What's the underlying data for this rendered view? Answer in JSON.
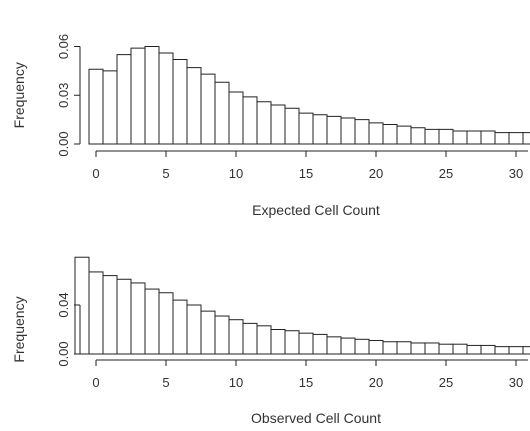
{
  "chart_data": [
    {
      "type": "bar",
      "xlabel": "Expected Cell Count",
      "ylabel": "Frequency",
      "x_ticks": [
        "0",
        "5",
        "10",
        "15",
        "20",
        "25",
        "30"
      ],
      "y_ticks": [
        "0.00",
        "0.03",
        "0.06"
      ],
      "xlim": [
        -1,
        31
      ],
      "ylim": [
        0,
        0.065
      ],
      "x": [
        0,
        1,
        2,
        3,
        4,
        5,
        6,
        7,
        8,
        9,
        10,
        11,
        12,
        13,
        14,
        15,
        16,
        17,
        18,
        19,
        20,
        21,
        22,
        23,
        24,
        25,
        26,
        27,
        28,
        29,
        30,
        31
      ],
      "values": [
        0.046,
        0.045,
        0.055,
        0.059,
        0.06,
        0.056,
        0.052,
        0.047,
        0.043,
        0.038,
        0.032,
        0.029,
        0.026,
        0.024,
        0.022,
        0.019,
        0.018,
        0.017,
        0.016,
        0.015,
        0.013,
        0.012,
        0.011,
        0.01,
        0.009,
        0.009,
        0.008,
        0.008,
        0.008,
        0.007,
        0.007,
        0.007
      ]
    },
    {
      "type": "bar",
      "xlabel": "Observed Cell Count",
      "ylabel": "Frequency",
      "x_ticks": [
        "0",
        "5",
        "10",
        "15",
        "20",
        "25",
        "30"
      ],
      "y_ticks": [
        "0.00",
        "0.04"
      ],
      "xlim": [
        -1,
        31
      ],
      "ylim": [
        0,
        0.085
      ],
      "x": [
        -1,
        0,
        1,
        2,
        3,
        4,
        5,
        6,
        7,
        8,
        9,
        10,
        11,
        12,
        13,
        14,
        15,
        16,
        17,
        18,
        19,
        20,
        21,
        22,
        23,
        24,
        25,
        26,
        27,
        28,
        29,
        30,
        31
      ],
      "values": [
        0.079,
        0.067,
        0.064,
        0.061,
        0.058,
        0.053,
        0.05,
        0.044,
        0.04,
        0.035,
        0.031,
        0.028,
        0.025,
        0.023,
        0.02,
        0.019,
        0.017,
        0.016,
        0.014,
        0.013,
        0.012,
        0.011,
        0.01,
        0.01,
        0.009,
        0.009,
        0.008,
        0.008,
        0.007,
        0.007,
        0.006,
        0.006,
        0.006
      ]
    }
  ]
}
